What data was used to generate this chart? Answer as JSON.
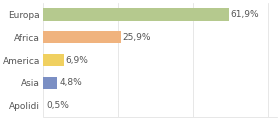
{
  "categories": [
    "Europa",
    "Africa",
    "America",
    "Asia",
    "Apolidi"
  ],
  "values": [
    61.9,
    25.9,
    6.9,
    4.8,
    0.5
  ],
  "labels": [
    "61,9%",
    "25,9%",
    "6,9%",
    "4,8%",
    "0,5%"
  ],
  "bar_colors": [
    "#b5c98e",
    "#f0b37e",
    "#f0d060",
    "#7b8fc4",
    "#e8e8e8"
  ],
  "background_color": "#ffffff",
  "text_color": "#555555",
  "label_fontsize": 6.5,
  "tick_fontsize": 6.5,
  "xlim": [
    0,
    78
  ],
  "grid_color": "#dddddd",
  "grid_ticks": [
    0,
    25,
    50,
    75
  ]
}
